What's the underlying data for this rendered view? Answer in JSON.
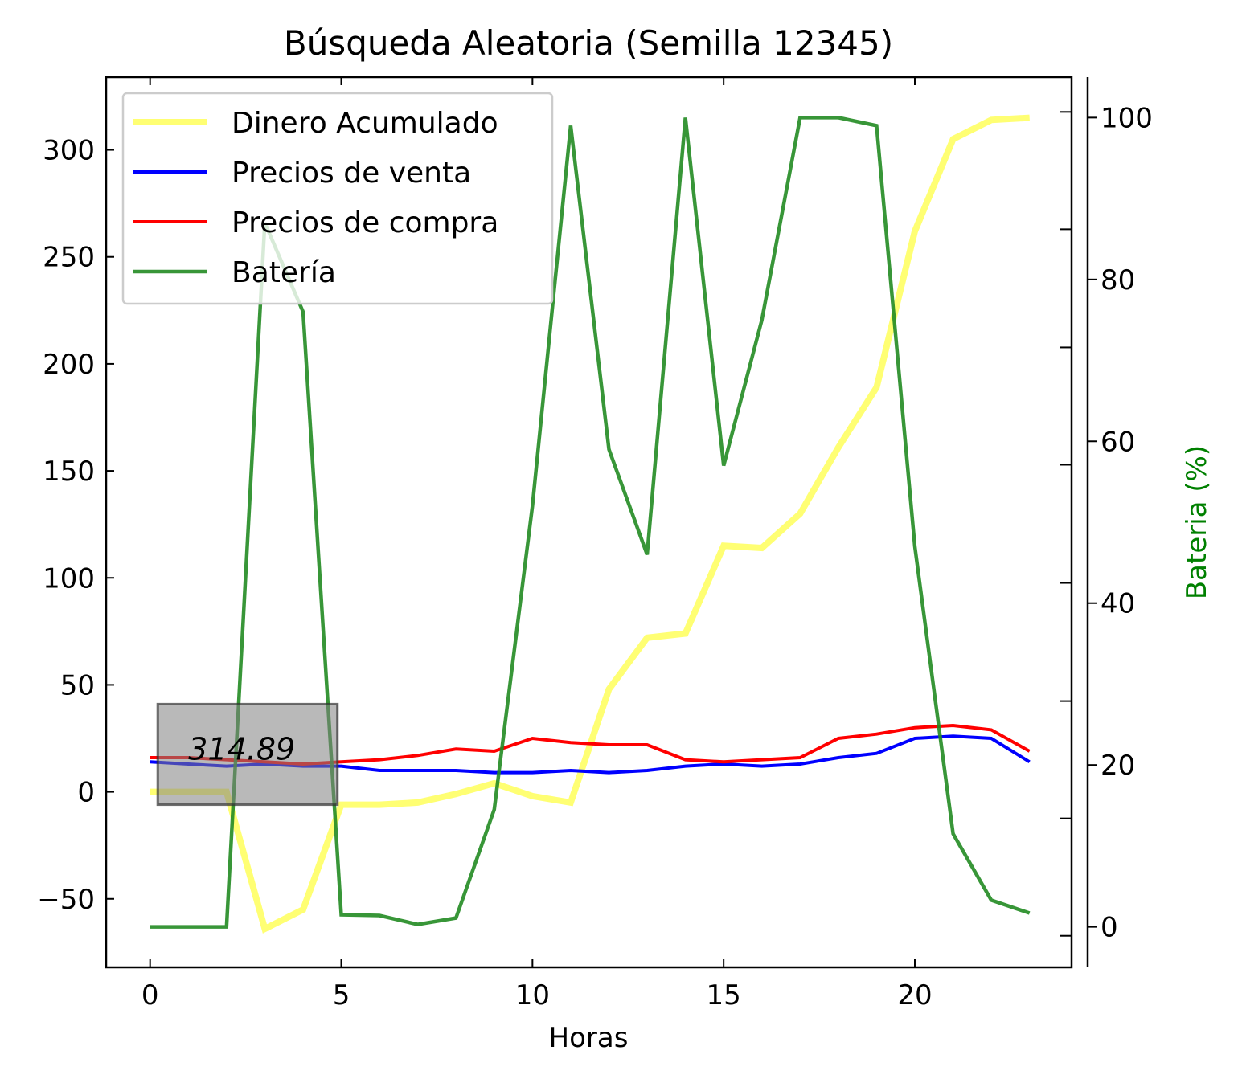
{
  "chart_data": {
    "type": "line",
    "title": "Búsqueda Aleatoria (Semilla 12345)",
    "xlabel": "Horas",
    "ylabel": "",
    "y2label": "Bateria (%)",
    "xlim": [
      -1.15,
      24.1
    ],
    "ylim": [
      -82,
      334
    ],
    "y2lim": [
      -5,
      105
    ],
    "xticks": [
      0,
      5,
      10,
      15,
      20
    ],
    "yticks": [
      -50,
      0,
      50,
      100,
      150,
      200,
      250,
      300
    ],
    "y2ticks": [
      0,
      20,
      40,
      60,
      80,
      100
    ],
    "y2_minor_ticks": [
      -1.1,
      13.4,
      27.9,
      42.5,
      57.1,
      71.6,
      86.2,
      100.7
    ],
    "x": [
      0,
      1,
      2,
      3,
      4,
      5,
      6,
      7,
      8,
      9,
      10,
      11,
      12,
      13,
      14,
      15,
      16,
      17,
      18,
      19,
      20,
      21,
      22,
      23
    ],
    "series": [
      {
        "name": "Dinero Acumulado",
        "axis": "left",
        "color": "#ffff00",
        "opacity": 0.55,
        "width": 8,
        "values": [
          0,
          0,
          0,
          -64,
          -55,
          -6,
          -6,
          -5,
          -1,
          4,
          -2,
          -5,
          48,
          72,
          74,
          115,
          114,
          130,
          161,
          189,
          262,
          305,
          314,
          315
        ]
      },
      {
        "name": "Precios de venta",
        "axis": "left",
        "color": "#0000ff",
        "opacity": 1,
        "width": 4,
        "values": [
          14,
          13,
          12,
          13,
          12,
          12,
          10,
          10,
          10,
          9,
          9,
          10,
          9,
          10,
          12,
          13,
          12,
          13,
          16,
          18,
          25,
          26,
          25,
          14
        ]
      },
      {
        "name": "Precios de compra",
        "axis": "left",
        "color": "#ff0000",
        "opacity": 1,
        "width": 4,
        "values": [
          16,
          16,
          15,
          14,
          13,
          14,
          15,
          17,
          20,
          19,
          25,
          23,
          22,
          22,
          15,
          14,
          15,
          16,
          25,
          27,
          30,
          31,
          29,
          19
        ]
      },
      {
        "name": "Batería",
        "axis": "right",
        "color": "#228b22",
        "opacity": 0.9,
        "width": 4.5,
        "values": [
          0,
          0,
          0,
          87,
          76,
          1.5,
          1.4,
          0.3,
          1.1,
          14.5,
          52,
          99,
          59,
          46,
          100,
          57,
          75,
          100,
          100,
          99,
          47,
          11.5,
          3.3,
          1.7
        ]
      }
    ],
    "legend": {
      "placement": "upper-left"
    },
    "annotation": {
      "text": "314.89",
      "box_x": [
        0.2,
        4.9
      ],
      "box_y": [
        -6,
        41
      ],
      "x": 1,
      "y": 15
    }
  }
}
